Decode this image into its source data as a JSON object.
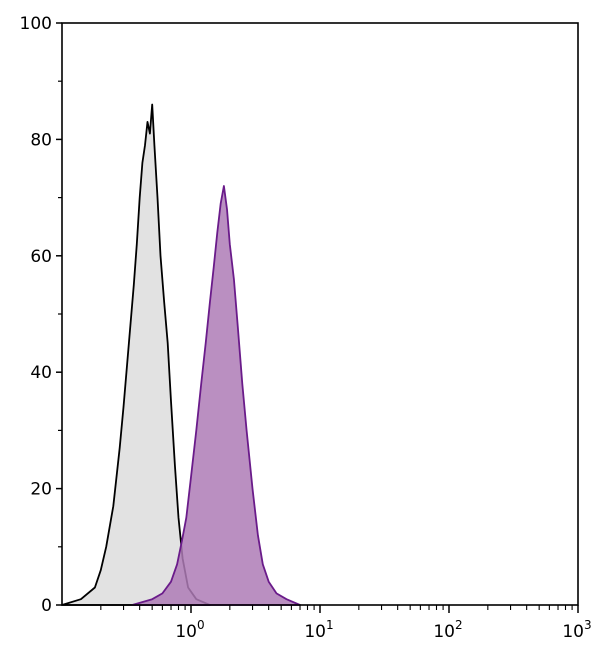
{
  "chart_data": {
    "type": "area",
    "title": "",
    "xlabel": "",
    "ylabel": "",
    "x_scale": "log",
    "xlim": [
      0.1,
      1000
    ],
    "ylim": [
      0,
      100
    ],
    "grid": false,
    "legend": "none",
    "x_ticks": [
      {
        "base": "10",
        "exp": "0",
        "value": 1
      },
      {
        "base": "10",
        "exp": "1",
        "value": 10
      },
      {
        "base": "10",
        "exp": "2",
        "value": 100
      },
      {
        "base": "10",
        "exp": "3",
        "value": 1000
      }
    ],
    "y_ticks": [
      "0",
      "20",
      "40",
      "60",
      "80",
      "100"
    ],
    "series": [
      {
        "fill": "#e2e2e2",
        "stroke": "#000000",
        "x": [
          0.1,
          0.14,
          0.18,
          0.2,
          0.22,
          0.25,
          0.28,
          0.3,
          0.33,
          0.36,
          0.38,
          0.4,
          0.42,
          0.44,
          0.46,
          0.48,
          0.5,
          0.52,
          0.55,
          0.58,
          0.62,
          0.66,
          0.7,
          0.75,
          0.8,
          0.86,
          0.95,
          1.1,
          1.4
        ],
        "y": [
          0,
          1,
          3,
          6,
          10,
          17,
          27,
          34,
          45,
          55,
          62,
          70,
          76,
          79,
          83,
          81,
          86,
          79,
          70,
          60,
          52,
          45,
          35,
          24,
          15,
          8,
          3,
          1,
          0
        ]
      },
      {
        "fill": "#ae7bb6",
        "stroke": "#6a1b8a",
        "x": [
          0.35,
          0.5,
          0.6,
          0.7,
          0.78,
          0.85,
          0.92,
          1.0,
          1.1,
          1.2,
          1.3,
          1.4,
          1.5,
          1.6,
          1.7,
          1.8,
          1.9,
          2.0,
          2.15,
          2.3,
          2.5,
          2.7,
          3.0,
          3.3,
          3.6,
          4.0,
          4.6,
          5.5,
          7
        ],
        "y": [
          0,
          1,
          2,
          4,
          7,
          11,
          15,
          22,
          30,
          38,
          45,
          52,
          58,
          64,
          69,
          72,
          68,
          62,
          56,
          48,
          38,
          30,
          20,
          12,
          7,
          4,
          2,
          1,
          0
        ]
      }
    ]
  }
}
